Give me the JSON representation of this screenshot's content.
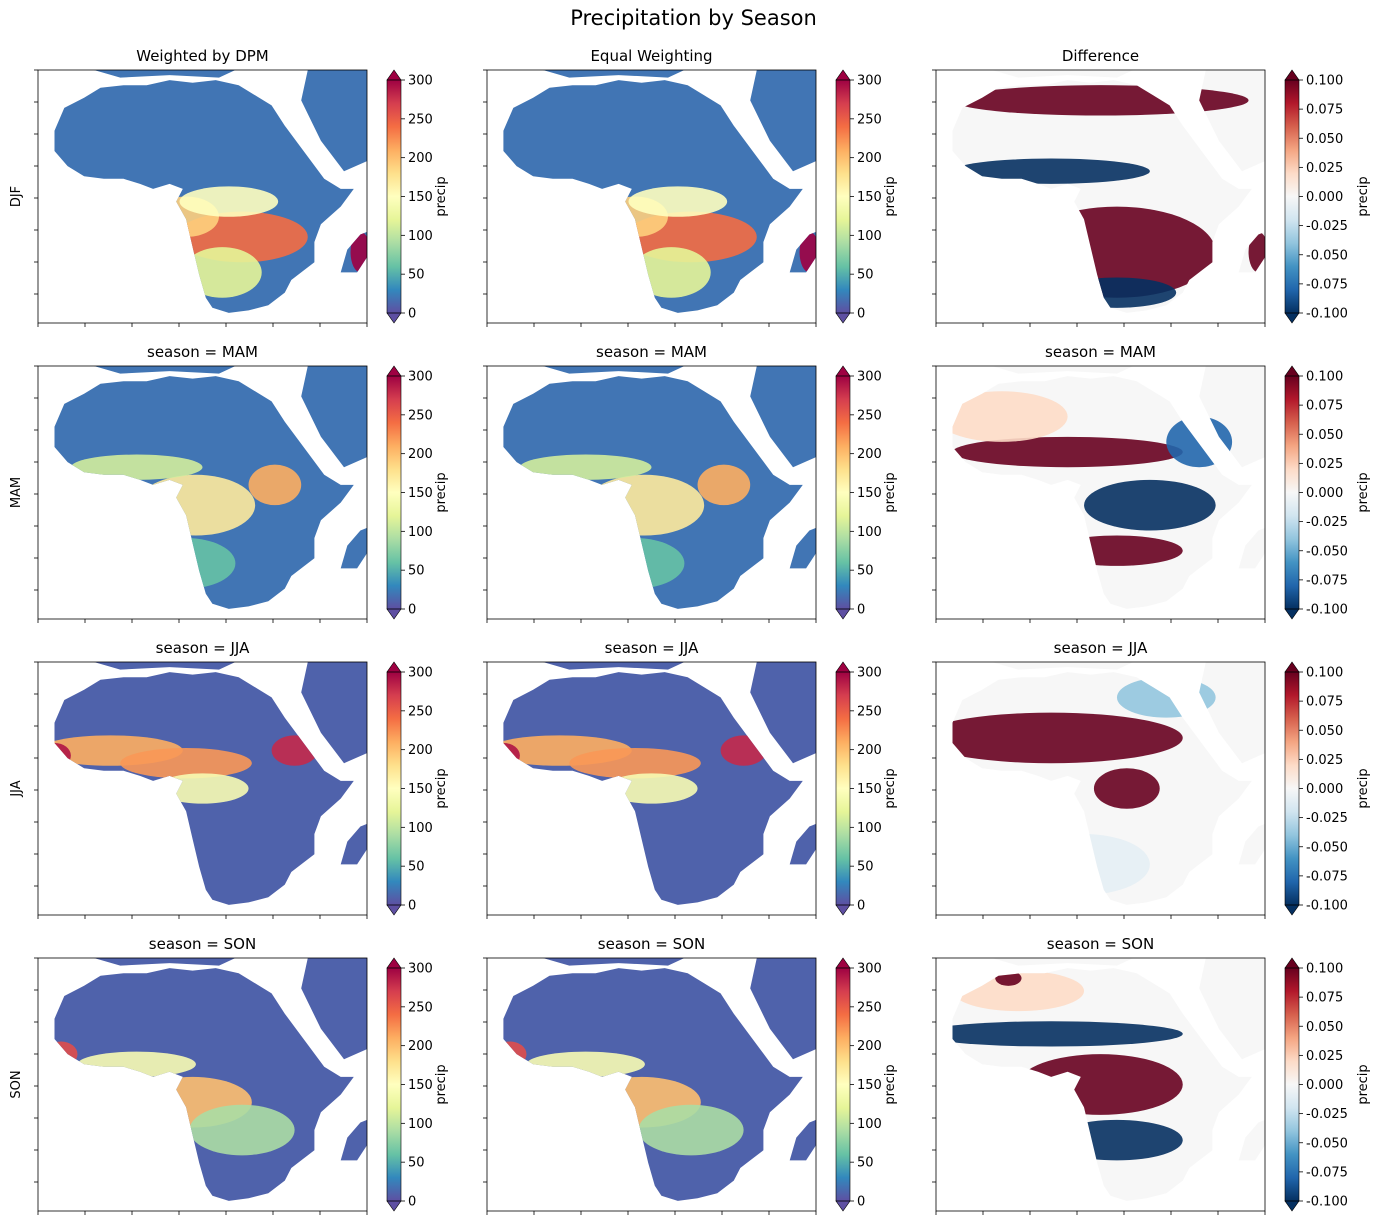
{
  "figure": {
    "title": "Precipitation by Season"
  },
  "colors": {
    "precip_cmap": [
      "#5e4fa2",
      "#3288bd",
      "#66c2a5",
      "#abdda4",
      "#e6f598",
      "#ffffbf",
      "#fee08b",
      "#fdae61",
      "#f46d43",
      "#d53e4f",
      "#9e0142"
    ],
    "diff_cmap": [
      "#053061",
      "#2166ac",
      "#4393c3",
      "#92c5de",
      "#d1e5f0",
      "#f7f7f7",
      "#fddbc7",
      "#f4a582",
      "#d6604d",
      "#b2182b",
      "#67001f"
    ]
  },
  "chart_data": {
    "type": "heatmap",
    "layout": "4x3 grid of maps, each with a colorbar",
    "rows": [
      {
        "row_label": "DJF",
        "titles": [
          "Weighted by DPM",
          "Equal Weighting",
          "Difference"
        ]
      },
      {
        "row_label": "MAM",
        "titles": [
          "season = MAM",
          "season = MAM",
          "season = MAM"
        ]
      },
      {
        "row_label": "JJA",
        "titles": [
          "season = JJA",
          "season = JJA",
          "season = JJA"
        ]
      },
      {
        "row_label": "SON",
        "titles": [
          "season = SON",
          "season = SON",
          "season = SON"
        ]
      }
    ],
    "colorbars": {
      "precip": {
        "label": "precip",
        "range": [
          0,
          300
        ],
        "ticks": [
          "0",
          "50",
          "100",
          "150",
          "200",
          "250",
          "300"
        ],
        "extend": "both",
        "colormap": "Spectral_r"
      },
      "difference": {
        "label": "precip",
        "range": [
          -0.1,
          0.1
        ],
        "ticks": [
          "-0.100",
          "-0.075",
          "-0.050",
          "-0.025",
          "0.000",
          "0.025",
          "0.050",
          "0.075",
          "0.100"
        ],
        "extend": "both",
        "colormap": "RdBu_r"
      }
    },
    "region": "Africa (land-only gridded precipitation)",
    "approximate_field_description": {
      "DJF": "wet belt south of equator (~200-280 over southern Congo/Zambia, >300 in Madagascar); Sahara ~0; difference positive (red) over central/southern Africa and Mediterranean coast, negative (blue) Sahel and far south",
      "MAM": "rain around equator and Ethiopian highlands (~150-250); difference positive Sahel band and southern Africa band, negative Sahara fringe and east",
      "JJA": "strong Sahel/West African monsoon band (~200-300), Ethiopian highlands >250; south dry; difference strongly positive over Sahel/West Africa",
      "SON": "rain over Congo basin and Guinea coast (~150-250); difference negative Sahel and south, positive central Africa"
    }
  }
}
